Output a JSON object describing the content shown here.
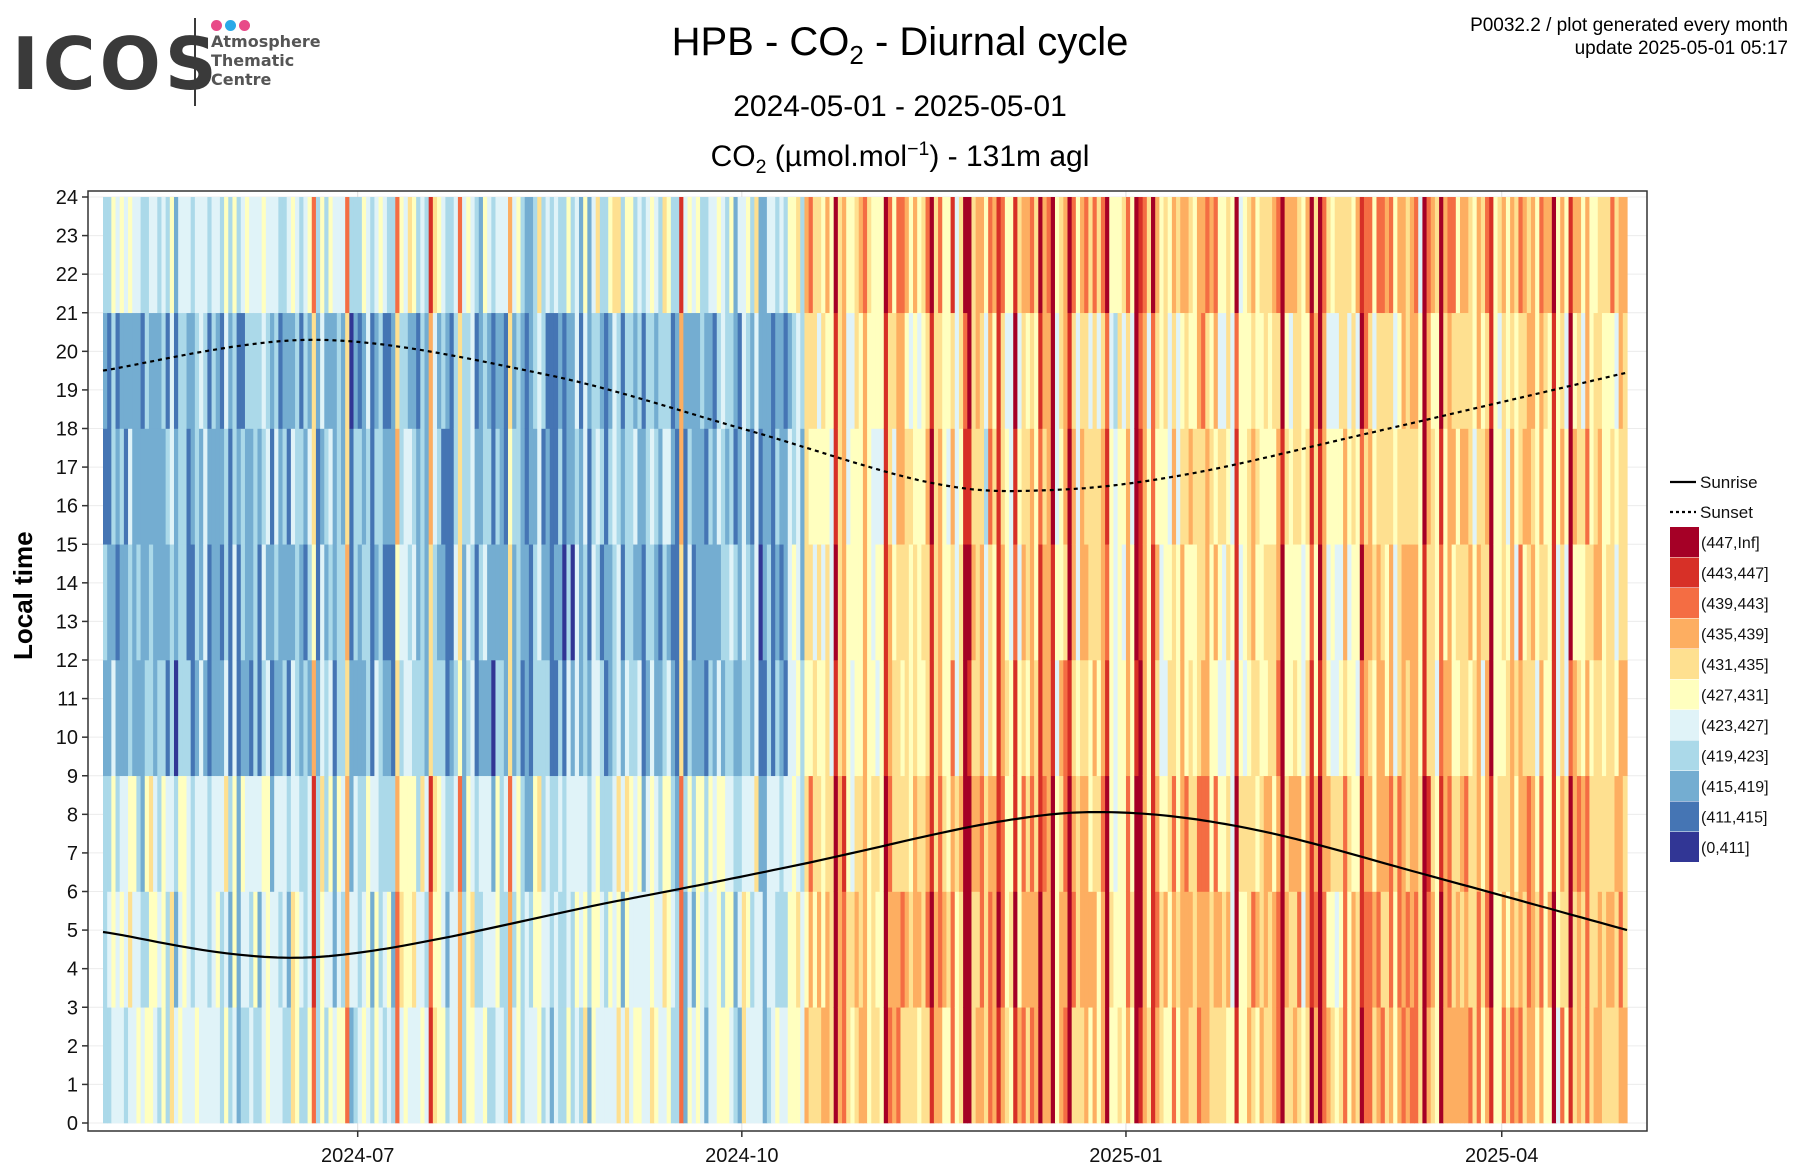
{
  "logo": {
    "text": "ICOS",
    "sub": [
      "Atmosphere",
      "Thematic",
      "Centre"
    ],
    "dot_colors": [
      "#e84a88",
      "#2aa9e8",
      "#e84a88"
    ]
  },
  "header": {
    "title_pre": "HPB - CO",
    "title_sub": "2",
    "title_post": " - Diurnal cycle",
    "period": "2024-05-01 - 2025-05-01",
    "var_pre": "CO",
    "var_sub": "2",
    "var_mid": " (µmol.mol",
    "var_sup": "−1",
    "var_post": ") - 131m agl"
  },
  "meta": {
    "line1": "P0032.2 / plot generated every month",
    "line2": "update  2025-05-01 05:17"
  },
  "chart_data": {
    "type": "heatmap",
    "ylabel": "Local time",
    "x_range": [
      "2024-05-01",
      "2025-05-01"
    ],
    "x_ticks": [
      "2024-07",
      "2024-10",
      "2025-01",
      "2025-04"
    ],
    "y_range": [
      0,
      24
    ],
    "y_ticks": [
      0,
      1,
      2,
      3,
      4,
      5,
      6,
      7,
      8,
      9,
      10,
      11,
      12,
      13,
      14,
      15,
      16,
      17,
      18,
      19,
      20,
      21,
      22,
      23,
      24
    ],
    "grid": true,
    "legend_position": "right",
    "legend_lines": [
      {
        "name": "Sunrise",
        "style": "solid"
      },
      {
        "name": "Sunset",
        "style": "dotted"
      }
    ],
    "color_classes": [
      {
        "label": "(447,Inf]",
        "color": "#a50026"
      },
      {
        "label": "(443,447]",
        "color": "#d73027"
      },
      {
        "label": "(439,443]",
        "color": "#f46d43"
      },
      {
        "label": "(435,439]",
        "color": "#fdae61"
      },
      {
        "label": "(431,435]",
        "color": "#fee090"
      },
      {
        "label": "(427,431]",
        "color": "#ffffbf"
      },
      {
        "label": "(423,427]",
        "color": "#e0f3f8"
      },
      {
        "label": "(419,423]",
        "color": "#abd9e9"
      },
      {
        "label": "(415,419]",
        "color": "#74add1"
      },
      {
        "label": "(411,415]",
        "color": "#4575b4"
      },
      {
        "label": "(0,411]",
        "color": "#313695"
      }
    ],
    "sunrise": [
      {
        "date": "2024-05-01",
        "hour": 4.95
      },
      {
        "date": "2024-06-21",
        "hour": 4.3
      },
      {
        "date": "2024-09-01",
        "hour": 5.75
      },
      {
        "date": "2024-10-15",
        "hour": 6.7
      },
      {
        "date": "2024-12-01",
        "hour": 7.8
      },
      {
        "date": "2024-12-30",
        "hour": 8.05
      },
      {
        "date": "2025-02-01",
        "hour": 7.6
      },
      {
        "date": "2025-03-15",
        "hour": 6.4
      },
      {
        "date": "2025-05-01",
        "hour": 5.0
      }
    ],
    "sunset": [
      {
        "date": "2024-05-01",
        "hour": 19.5
      },
      {
        "date": "2024-06-21",
        "hour": 20.3
      },
      {
        "date": "2024-08-15",
        "hour": 19.4
      },
      {
        "date": "2024-10-01",
        "hour": 18.0
      },
      {
        "date": "2024-11-15",
        "hour": 16.6
      },
      {
        "date": "2024-12-13",
        "hour": 16.4
      },
      {
        "date": "2025-01-15",
        "hour": 16.8
      },
      {
        "date": "2025-03-01",
        "hour": 17.9
      },
      {
        "date": "2025-05-01",
        "hour": 19.45
      }
    ],
    "bins_per_day": 8,
    "daily_co2_level_by_period": [
      {
        "from": "2024-05-01",
        "to": "2024-10-17",
        "typical_range": "(411,431]",
        "night_range": "(423,439]"
      },
      {
        "from": "2024-10-18",
        "to": "2025-05-01",
        "typical_range": "(427,447]",
        "night_range": "(431,Inf]"
      }
    ]
  }
}
